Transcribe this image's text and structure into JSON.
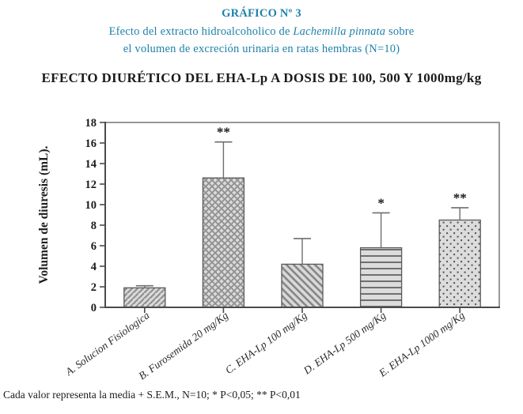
{
  "header": {
    "kicker": "GRÁFICO Nº 3",
    "subtitle_pre": "Efecto del extracto hidroalcoholico de ",
    "subtitle_species": "Lachemilla pinnata",
    "subtitle_post": " sobre",
    "subtitle_line2": "el volumen de excreción urinaria en ratas hembras (N=10)",
    "accent_color": "#1e82aa"
  },
  "footer": {
    "note": "Cada valor representa la media + S.E.M., N=10; * P<0,05; ** P<0,01"
  },
  "chart_data": {
    "type": "bar",
    "title": "EFECTO DIURÉTICO DEL EHA-Lp A DOSIS DE 100, 500 Y 1000mg/kg",
    "ylabel": "Volumen de diuresis (mL).",
    "xlabel": "",
    "ylim": [
      0,
      18
    ],
    "yticks": [
      0,
      2,
      4,
      6,
      8,
      10,
      12,
      14,
      16,
      18
    ],
    "grid": false,
    "legend": "none",
    "categories": [
      "A. Solucion Fisiologica",
      "B. Furosemida 20 mg/Kg",
      "C. EHA-Lp 100 mg/Kg",
      "D. EHA-Lp 500 mg/Kg",
      "E. EHA-Lp 1000 mg/Kg"
    ],
    "values": [
      1.9,
      12.6,
      4.2,
      5.8,
      8.5
    ],
    "errors_up": [
      0.2,
      3.5,
      2.5,
      3.4,
      1.2
    ],
    "significance": [
      "",
      "**",
      "",
      "*",
      "**"
    ],
    "patterns": [
      "diagonal-up",
      "crosshatch",
      "diagonal-down",
      "horizontal",
      "dots"
    ],
    "bar_fill": "#d9d9d9",
    "bar_stroke": "#5a5a5a",
    "axis_color": "#4a4a4a",
    "frame_color": "#7d7d7d",
    "error_color": "#6e6e6e",
    "text_color": "#1b1b1b"
  }
}
